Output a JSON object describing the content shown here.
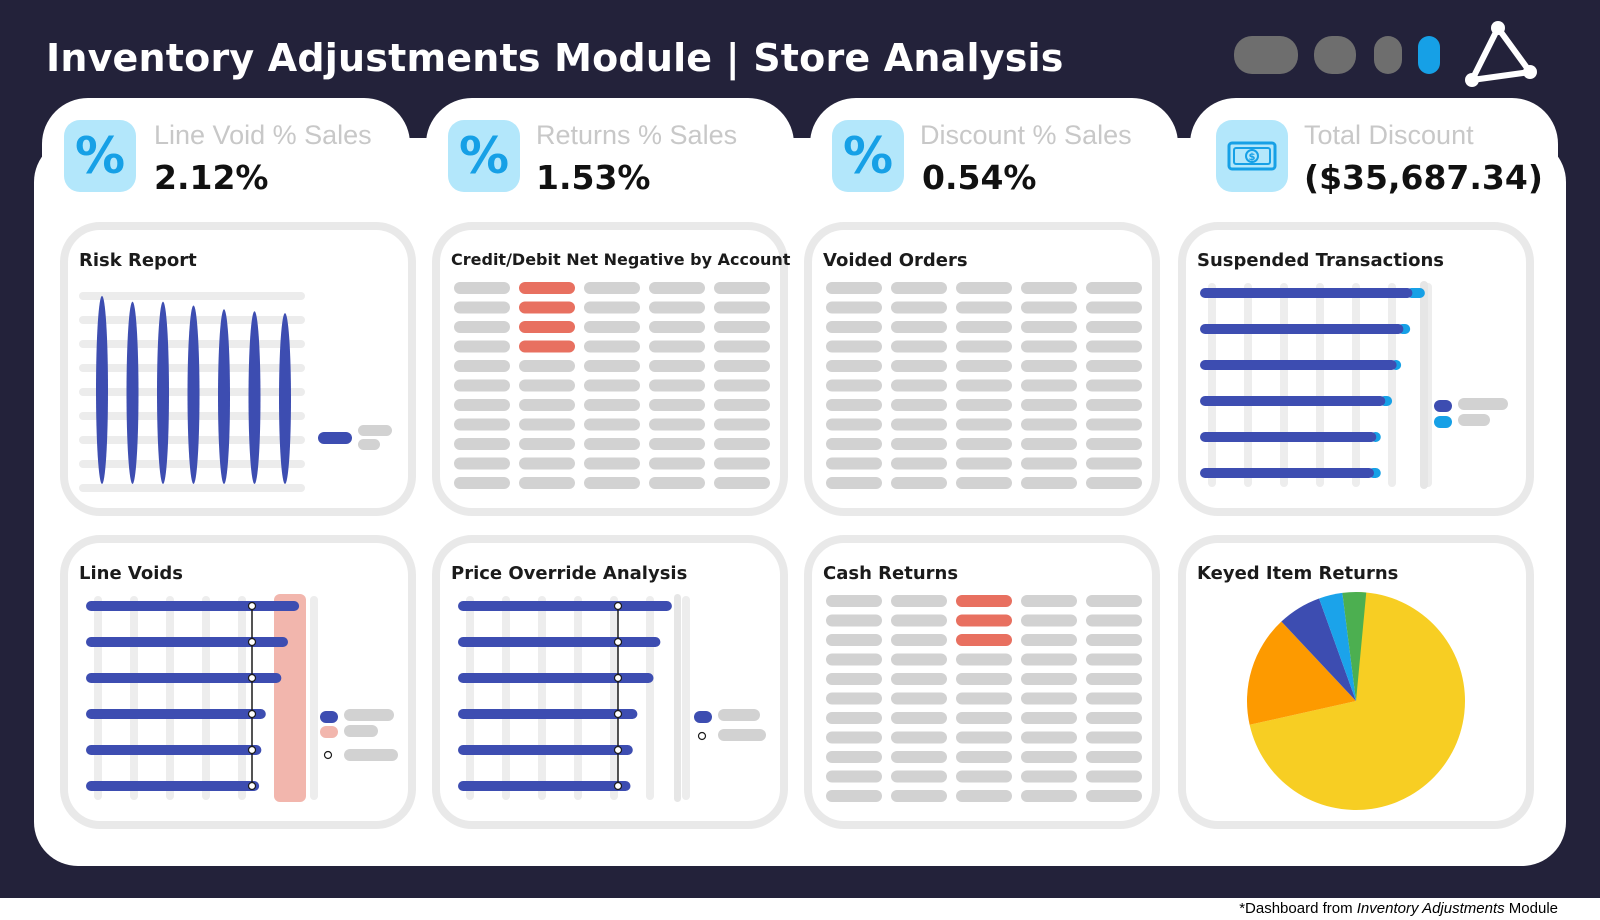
{
  "header": {
    "title": "Inventory Adjustments Module | Store Analysis"
  },
  "kpis": [
    {
      "label": "Line Void % Sales",
      "value": "2.12%",
      "icon": "percent-icon"
    },
    {
      "label": "Returns % Sales",
      "value": "1.53%",
      "icon": "percent-icon"
    },
    {
      "label": "Discount % Sales",
      "value": "0.54%",
      "icon": "percent-icon"
    },
    {
      "label": "Total Discount",
      "value": "($35,687.34)",
      "icon": "banknote-icon"
    }
  ],
  "cards": {
    "risk_report": "Risk Report",
    "credit_debit": "Credit/Debit Net Negative by Account",
    "voided_orders": "Voided Orders",
    "suspended": "Suspended Transactions",
    "line_voids": "Line Voids",
    "price_override": "Price Override Analysis",
    "cash_returns": "Cash Returns",
    "keyed_returns": "Keyed Item Returns"
  },
  "footnote": {
    "prefix": "*Dashboard from ",
    "module_name": "Inventory Adjustments",
    "suffix": " Module"
  },
  "colors": {
    "background": "#23223a",
    "navy_bar": "#3d4db1",
    "cyan_accent": "#16a0e6",
    "highlight_red": "#e87060",
    "placeholder_gray": "#d2d2d2",
    "pie_yellow": "#f7ce23",
    "pie_orange": "#fd9a00",
    "pie_blue": "#3d4db1",
    "pie_cyan": "#1ba3ea",
    "pie_green": "#4caf50"
  },
  "chart_data": [
    {
      "id": "risk-report",
      "type": "bar",
      "values": [
        0.98,
        0.95,
        0.95,
        0.93,
        0.91,
        0.9,
        0.89
      ]
    },
    {
      "id": "suspended-transactions",
      "type": "bar",
      "orientation": "horizontal",
      "series": [
        {
          "values": [
            0.94,
            0.9,
            0.87,
            0.82,
            0.78,
            0.77
          ]
        },
        {
          "values": [
            0.055,
            0.03,
            0.02,
            0.03,
            0.02,
            0.03
          ]
        }
      ]
    },
    {
      "id": "line-voids",
      "type": "bar",
      "orientation": "horizontal",
      "values": [
        0.96,
        0.91,
        0.88,
        0.81,
        0.79,
        0.78
      ]
    },
    {
      "id": "price-override",
      "type": "bar",
      "orientation": "horizontal",
      "values": [
        0.93,
        0.88,
        0.85,
        0.78,
        0.76,
        0.75
      ]
    },
    {
      "id": "keyed-item-returns",
      "type": "pie",
      "values": [
        0.715,
        0.165,
        0.065,
        0.035,
        0.035
      ]
    }
  ],
  "tables": {
    "credit_debit": {
      "rows": 11,
      "cols": 5,
      "highlight_col": 1,
      "highlight_rows": [
        0,
        1,
        2,
        3
      ]
    },
    "voided_orders": {
      "rows": 11,
      "cols": 5,
      "highlight_col": -1,
      "highlight_rows": []
    },
    "cash_returns": {
      "rows": 11,
      "cols": 5,
      "highlight_col": 2,
      "highlight_rows": [
        0,
        1,
        2
      ]
    }
  }
}
